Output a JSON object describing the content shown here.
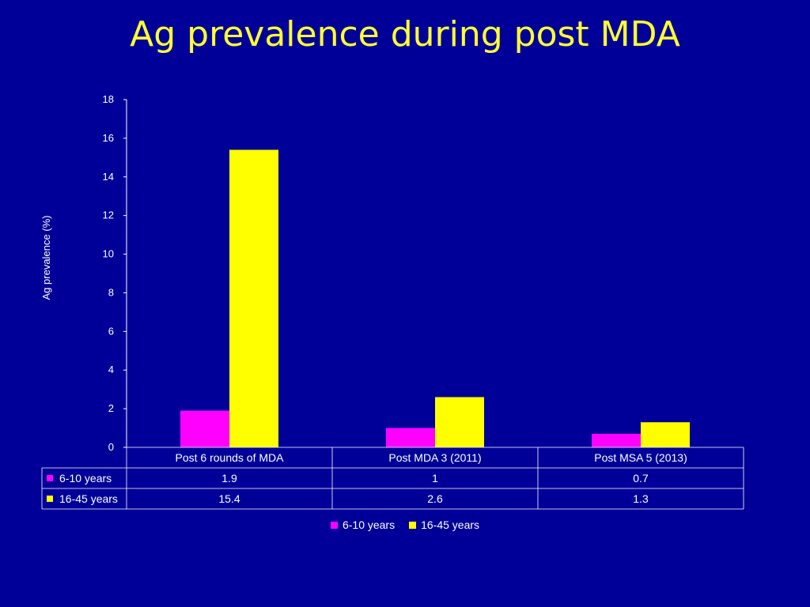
{
  "slide": {
    "title": "Ag prevalence during post MDA"
  },
  "colors": {
    "background": "#000099",
    "title": "#ffff33",
    "series1": "#ff00ff",
    "series2": "#ffff00",
    "axis": "#ffffff"
  },
  "chart_data": {
    "type": "bar",
    "title": "",
    "xlabel": "",
    "ylabel": "Ag prevalence (%)",
    "ylim": [
      0,
      18
    ],
    "yticks": [
      "0",
      "2",
      "4",
      "6",
      "8",
      "10",
      "12",
      "14",
      "16",
      "18"
    ],
    "categories": [
      "Post 6 rounds of MDA",
      "Post MDA 3 (2011)",
      "Post MSA 5 (2013)"
    ],
    "series": [
      {
        "name": "6-10 years",
        "values": [
          1.9,
          1,
          0.7
        ],
        "labels": [
          "1.9",
          "1",
          "0.7"
        ]
      },
      {
        "name": "16-45 years",
        "values": [
          15.4,
          2.6,
          1.3
        ],
        "labels": [
          "15.4",
          "2.6",
          "1.3"
        ]
      }
    ],
    "legend": "bottom",
    "grid": false,
    "data_table": true
  }
}
